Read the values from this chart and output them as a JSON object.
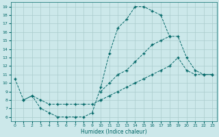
{
  "title": "",
  "xlabel": "Humidex (Indice chaleur)",
  "background_color": "#cce8ea",
  "grid_color": "#aacccc",
  "line_color": "#006666",
  "xlim": [
    -0.5,
    23.5
  ],
  "ylim": [
    5.5,
    19.5
  ],
  "xticks": [
    0,
    1,
    2,
    3,
    4,
    5,
    6,
    7,
    8,
    9,
    10,
    11,
    12,
    13,
    14,
    15,
    16,
    17,
    18,
    19,
    20,
    21,
    22,
    23
  ],
  "yticks": [
    6,
    7,
    8,
    9,
    10,
    11,
    12,
    13,
    14,
    15,
    16,
    17,
    18,
    19
  ],
  "series": [
    {
      "x": [
        0,
        1,
        2,
        3,
        4,
        5,
        6,
        7,
        8,
        9,
        10,
        11,
        12,
        13,
        14,
        15,
        16,
        17,
        18
      ],
      "y": [
        10.5,
        8.0,
        8.5,
        7.0,
        6.5,
        6.0,
        6.0,
        6.0,
        6.0,
        6.5,
        9.5,
        13.5,
        16.5,
        17.5,
        19.0,
        19.0,
        18.5,
        18.0,
        15.5
      ]
    },
    {
      "x": [
        10,
        11,
        12,
        13,
        14,
        15,
        16,
        17,
        18,
        19,
        20,
        21,
        22,
        23
      ],
      "y": [
        9.0,
        10.0,
        11.0,
        11.5,
        12.5,
        13.5,
        14.5,
        15.0,
        15.5,
        15.5,
        13.0,
        11.5,
        11.0,
        11.0
      ]
    },
    {
      "x": [
        10,
        11,
        12,
        13,
        14,
        15,
        16,
        17,
        18,
        19,
        20,
        21,
        22,
        23
      ],
      "y": [
        8.0,
        8.5,
        9.0,
        9.5,
        10.0,
        10.5,
        11.0,
        11.5,
        12.0,
        13.0,
        11.5,
        11.0,
        11.0,
        11.0
      ]
    },
    {
      "x": [
        1,
        2,
        3,
        4,
        5,
        6,
        7,
        8,
        9,
        10
      ],
      "y": [
        8.0,
        8.5,
        8.0,
        7.5,
        7.5,
        7.5,
        7.5,
        7.5,
        7.5,
        8.0
      ]
    }
  ]
}
